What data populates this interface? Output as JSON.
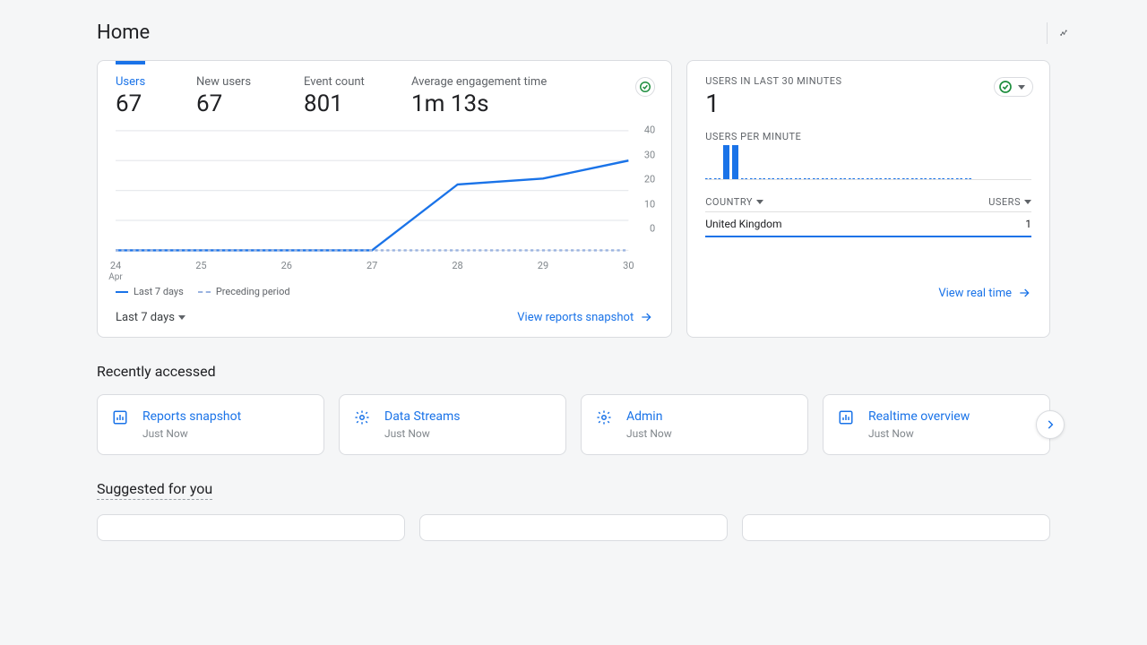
{
  "page": {
    "title": "Home"
  },
  "main_card": {
    "metrics": [
      {
        "label": "Users",
        "value": "67",
        "active": true
      },
      {
        "label": "New users",
        "value": "67",
        "active": false
      },
      {
        "label": "Event count",
        "value": "801",
        "active": false
      },
      {
        "label": "Average engagement time",
        "value": "1m 13s",
        "active": false
      }
    ],
    "chart": {
      "type": "line",
      "x_labels": [
        "24",
        "25",
        "26",
        "27",
        "28",
        "29",
        "30"
      ],
      "x_sublabels": [
        "Apr"
      ],
      "series": [
        {
          "name": "Last 7 days",
          "style": "solid",
          "color": "#1a73e8",
          "values": [
            0,
            0,
            0,
            0,
            22,
            24,
            30
          ]
        },
        {
          "name": "Preceding period",
          "style": "dashed",
          "color": "#9ab3e0",
          "values": [
            0,
            0,
            0,
            0,
            0,
            0,
            0
          ]
        }
      ],
      "ylim": [
        0,
        40
      ],
      "ytick_step": 10,
      "y_labels": [
        "0",
        "10",
        "20",
        "30",
        "40"
      ],
      "grid_color": "#e8eaed",
      "label_color": "#80868b",
      "label_fontsize": 11
    },
    "date_range": "Last 7 days",
    "footer_link": "View reports snapshot"
  },
  "realtime_card": {
    "title": "USERS IN LAST 30 MINUTES",
    "value": "1",
    "per_minute_label": "USERS PER MINUTE",
    "bars": {
      "color": "#1a73e8",
      "values": [
        0,
        0,
        38,
        38,
        0,
        0,
        0,
        0,
        0,
        0,
        0,
        0,
        0,
        0,
        0,
        0,
        0,
        0,
        0,
        0,
        0,
        0,
        0,
        0,
        0,
        0,
        0,
        0,
        0,
        0
      ]
    },
    "table": {
      "columns": [
        "COUNTRY",
        "USERS"
      ],
      "rows": [
        [
          "United Kingdom",
          "1"
        ]
      ]
    },
    "footer_link": "View real time"
  },
  "recently_accessed": {
    "title": "Recently accessed",
    "items": [
      {
        "icon": "bar-chart",
        "title": "Reports snapshot",
        "sub": "Just Now"
      },
      {
        "icon": "gear",
        "title": "Data Streams",
        "sub": "Just Now"
      },
      {
        "icon": "gear",
        "title": "Admin",
        "sub": "Just Now"
      },
      {
        "icon": "bar-chart",
        "title": "Realtime overview",
        "sub": "Just Now"
      }
    ]
  },
  "suggested": {
    "title": "Suggested for you"
  },
  "colors": {
    "primary": "#1a73e8",
    "success": "#1e8e3e",
    "text": "#202124",
    "secondary_text": "#5f6368",
    "border": "#dadce0",
    "grid": "#e8eaed",
    "bg": "#f5f6f7"
  }
}
